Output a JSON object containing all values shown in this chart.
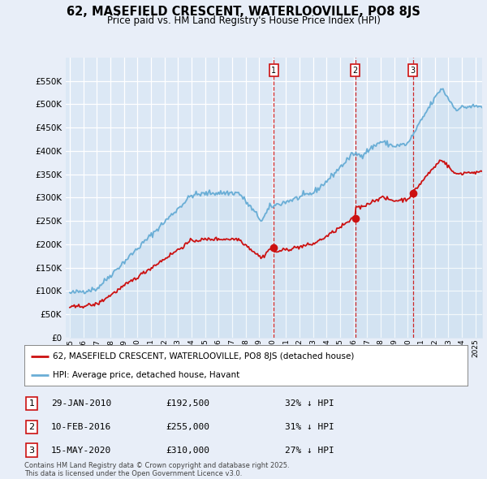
{
  "title": "62, MASEFIELD CRESCENT, WATERLOOVILLE, PO8 8JS",
  "subtitle": "Price paid vs. HM Land Registry's House Price Index (HPI)",
  "bg_color": "#dce8f5",
  "plot_bg_color": "#dce8f5",
  "fig_bg_color": "#e8eef8",
  "hpi_color": "#6aaed6",
  "price_color": "#cc1111",
  "ylim": [
    0,
    600000
  ],
  "yticks": [
    0,
    50000,
    100000,
    150000,
    200000,
    250000,
    300000,
    350000,
    400000,
    450000,
    500000,
    550000
  ],
  "xlim_start": 1994.7,
  "xlim_end": 2025.5,
  "xticks": [
    1995,
    1996,
    1997,
    1998,
    1999,
    2000,
    2001,
    2002,
    2003,
    2004,
    2005,
    2006,
    2007,
    2008,
    2009,
    2010,
    2011,
    2012,
    2013,
    2014,
    2015,
    2016,
    2017,
    2018,
    2019,
    2020,
    2021,
    2022,
    2023,
    2024,
    2025
  ],
  "sales": [
    {
      "date_year": 2010.08,
      "price": 192500,
      "label": "1"
    },
    {
      "date_year": 2016.11,
      "price": 255000,
      "label": "2"
    },
    {
      "date_year": 2020.37,
      "price": 310000,
      "label": "3"
    }
  ],
  "legend_price_label": "62, MASEFIELD CRESCENT, WATERLOOVILLE, PO8 8JS (detached house)",
  "legend_hpi_label": "HPI: Average price, detached house, Havant",
  "table_rows": [
    {
      "num": "1",
      "date": "29-JAN-2010",
      "price": "£192,500",
      "note": "32% ↓ HPI"
    },
    {
      "num": "2",
      "date": "10-FEB-2016",
      "price": "£255,000",
      "note": "31% ↓ HPI"
    },
    {
      "num": "3",
      "date": "15-MAY-2020",
      "price": "£310,000",
      "note": "27% ↓ HPI"
    }
  ],
  "footer": "Contains HM Land Registry data © Crown copyright and database right 2025.\nThis data is licensed under the Open Government Licence v3.0."
}
